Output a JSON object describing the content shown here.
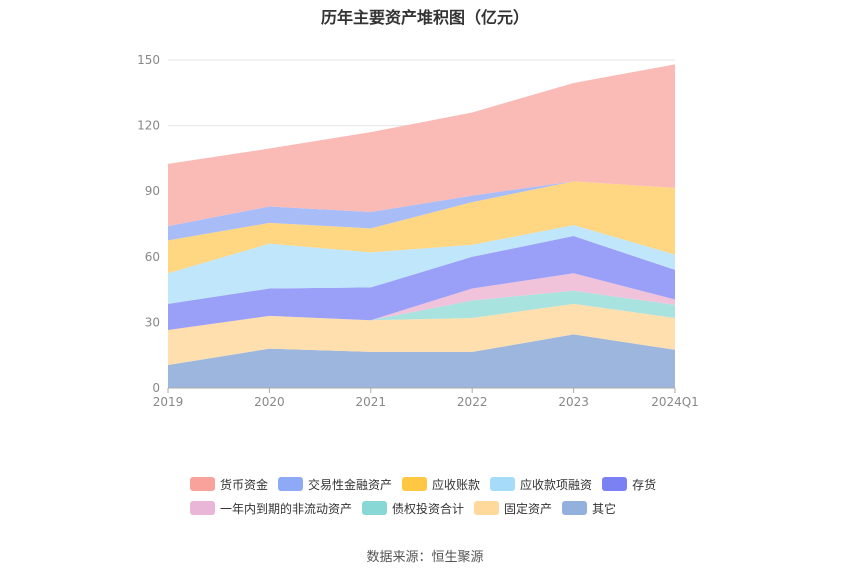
{
  "chart_data": {
    "type": "area",
    "stacked": true,
    "title": "历年主要资产堆积图（亿元）",
    "categories": [
      "2019",
      "2020",
      "2021",
      "2022",
      "2023",
      "2024Q1"
    ],
    "ylim": [
      0,
      150
    ],
    "yticks": [
      0,
      30,
      60,
      90,
      120,
      150
    ],
    "xlabel": "",
    "ylabel": "",
    "legend_position": "bottom",
    "series": [
      {
        "name": "其它",
        "color": "#9db6de",
        "values": [
          10.5,
          18,
          16.5,
          16.5,
          24.5,
          17.5
        ]
      },
      {
        "name": "固定资产",
        "color": "#ffdfad",
        "values": [
          16,
          15,
          14.5,
          15.5,
          14,
          14.5
        ]
      },
      {
        "name": "债权投资合计",
        "color": "#a8e3df",
        "values": [
          0,
          0,
          0,
          8,
          6,
          6
        ]
      },
      {
        "name": "一年内到期的非流动资产",
        "color": "#f0c3da",
        "values": [
          0,
          0,
          0,
          5.5,
          8,
          2.5
        ]
      },
      {
        "name": "存货",
        "color": "#9a9ff7",
        "values": [
          12,
          12.5,
          15,
          14.5,
          17,
          13.5
        ]
      },
      {
        "name": "应收款项融资",
        "color": "#bfe6fb",
        "values": [
          14,
          20.5,
          16,
          5.5,
          5,
          7
        ]
      },
      {
        "name": "应收账款",
        "color": "#ffd682",
        "values": [
          15,
          9.5,
          11,
          19.5,
          20,
          30.5
        ]
      },
      {
        "name": "交易性金融资产",
        "color": "#a8bcf8",
        "values": [
          6.5,
          7.5,
          7.5,
          3,
          0,
          0
        ]
      },
      {
        "name": "货币资金",
        "color": "#fabab5",
        "values": [
          28.5,
          26.5,
          36.5,
          38,
          45,
          56.5
        ]
      }
    ],
    "legend_entries": [
      {
        "name": "货币资金",
        "color": "#f8a29b"
      },
      {
        "name": "交易性金融资产",
        "color": "#8eaaf7"
      },
      {
        "name": "应收账款",
        "color": "#ffc743"
      },
      {
        "name": "应收款项融资",
        "color": "#a6dcfa"
      },
      {
        "name": "存货",
        "color": "#7b81f3"
      },
      {
        "name": "一年内到期的非流动资产",
        "color": "#eab6d7"
      },
      {
        "name": "债权投资合计",
        "color": "#88d8d6"
      },
      {
        "name": "固定资产",
        "color": "#ffd89b"
      },
      {
        "name": "其它",
        "color": "#93b1dc"
      }
    ]
  },
  "source": "数据来源：恒生聚源"
}
